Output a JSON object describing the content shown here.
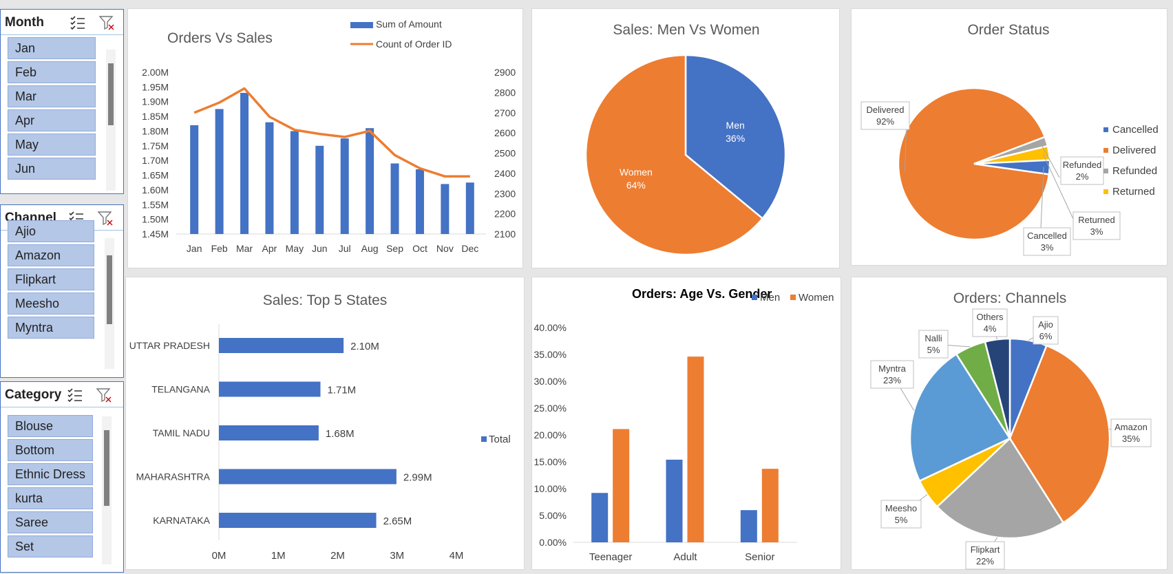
{
  "slicers": [
    {
      "title": "Month",
      "items": [
        "Jan",
        "Feb",
        "Mar",
        "Apr",
        "May",
        "Jun"
      ]
    },
    {
      "title": "Channel",
      "items": [
        "Ajio",
        "Amazon",
        "Flipkart",
        "Meesho",
        "Myntra"
      ]
    },
    {
      "title": "Category",
      "items": [
        "Blouse",
        "Bottom",
        "Ethnic Dress",
        "kurta",
        "Saree",
        "Set"
      ]
    }
  ],
  "chart_data": [
    {
      "type": "bar+line",
      "title": "Orders Vs Sales",
      "categories": [
        "Jan",
        "Feb",
        "Mar",
        "Apr",
        "May",
        "Jun",
        "Jul",
        "Aug",
        "Sep",
        "Oct",
        "Nov",
        "Dec"
      ],
      "series": [
        {
          "name": "Sum of Amount",
          "type": "bar",
          "axis": "left",
          "values": [
            1.82,
            1.875,
            1.93,
            1.83,
            1.8,
            1.75,
            1.775,
            1.81,
            1.69,
            1.67,
            1.62,
            1.625
          ]
        },
        {
          "name": "Count of Order ID",
          "type": "line",
          "axis": "right",
          "values": [
            2700,
            2750,
            2820,
            2680,
            2615,
            2595,
            2580,
            2610,
            2490,
            2425,
            2385,
            2385
          ]
        }
      ],
      "y_left": {
        "ylim": [
          1.45,
          2.0
        ],
        "ticks": [
          "1.45M",
          "1.50M",
          "1.55M",
          "1.60M",
          "1.65M",
          "1.70M",
          "1.75M",
          "1.80M",
          "1.85M",
          "1.90M",
          "1.95M",
          "2.00M"
        ]
      },
      "y_right": {
        "ylim": [
          2100,
          2900
        ],
        "ticks": [
          "2100",
          "2200",
          "2300",
          "2400",
          "2500",
          "2600",
          "2700",
          "2800",
          "2900"
        ]
      },
      "legend": "top-right",
      "colors": {
        "bar": "#4472c4",
        "line": "#ed7d31"
      }
    },
    {
      "type": "pie",
      "title": "Sales: Men Vs Women",
      "slices": [
        {
          "name": "Men",
          "value": 36,
          "label": "36%",
          "color": "#4472c4"
        },
        {
          "name": "Women",
          "value": 64,
          "label": "64%",
          "color": "#ed7d31"
        }
      ]
    },
    {
      "type": "pie",
      "title": "Order Status",
      "legend": [
        "Cancelled",
        "Delivered",
        "Refunded",
        "Returned"
      ],
      "slices": [
        {
          "name": "Delivered",
          "value": 92,
          "label": "92%",
          "color": "#ed7d31"
        },
        {
          "name": "Refunded",
          "value": 2,
          "label": "2%",
          "color": "#a5a5a5"
        },
        {
          "name": "Returned",
          "value": 3,
          "label": "3%",
          "color": "#ffc000"
        },
        {
          "name": "Cancelled",
          "value": 3,
          "label": "3%",
          "color": "#4472c4"
        }
      ]
    },
    {
      "type": "bar",
      "orientation": "horizontal",
      "title": "Sales: Top 5 States",
      "categories": [
        "UTTAR PRADESH",
        "TELANGANA",
        "TAMIL NADU",
        "MAHARASHTRA",
        "KARNATAKA"
      ],
      "values": [
        2.1,
        1.71,
        1.68,
        2.99,
        2.65
      ],
      "value_labels": [
        "2.10M",
        "1.71M",
        "1.68M",
        "2.99M",
        "2.65M"
      ],
      "xlim": [
        0,
        4
      ],
      "ticks": [
        "0M",
        "1M",
        "2M",
        "3M",
        "4M"
      ],
      "legend": [
        "Total"
      ],
      "color": "#4472c4"
    },
    {
      "type": "bar",
      "title": "Orders: Age Vs. Gender",
      "categories": [
        "Teenager",
        "Adult",
        "Senior"
      ],
      "series": [
        {
          "name": "Men",
          "values": [
            9.2,
            15.4,
            6.0
          ],
          "color": "#4472c4"
        },
        {
          "name": "Women",
          "values": [
            21.1,
            34.6,
            13.7
          ],
          "color": "#ed7d31"
        }
      ],
      "ylim": [
        0,
        40
      ],
      "ticks": [
        "0.00%",
        "5.00%",
        "10.00%",
        "15.00%",
        "20.00%",
        "25.00%",
        "30.00%",
        "35.00%",
        "40.00%"
      ]
    },
    {
      "type": "pie",
      "title": "Orders: Channels",
      "slices": [
        {
          "name": "Ajio",
          "value": 6,
          "label": "6%",
          "color": "#4472c4"
        },
        {
          "name": "Amazon",
          "value": 35,
          "label": "35%",
          "color": "#ed7d31"
        },
        {
          "name": "Flipkart",
          "value": 22,
          "label": "22%",
          "color": "#a5a5a5"
        },
        {
          "name": "Meesho",
          "value": 5,
          "label": "5%",
          "color": "#ffc000"
        },
        {
          "name": "Myntra",
          "value": 23,
          "label": "23%",
          "color": "#5b9bd5"
        },
        {
          "name": "Nalli",
          "value": 5,
          "label": "5%",
          "color": "#70ad47"
        },
        {
          "name": "Others",
          "value": 4,
          "label": "4%",
          "color": "#264478"
        }
      ]
    }
  ]
}
